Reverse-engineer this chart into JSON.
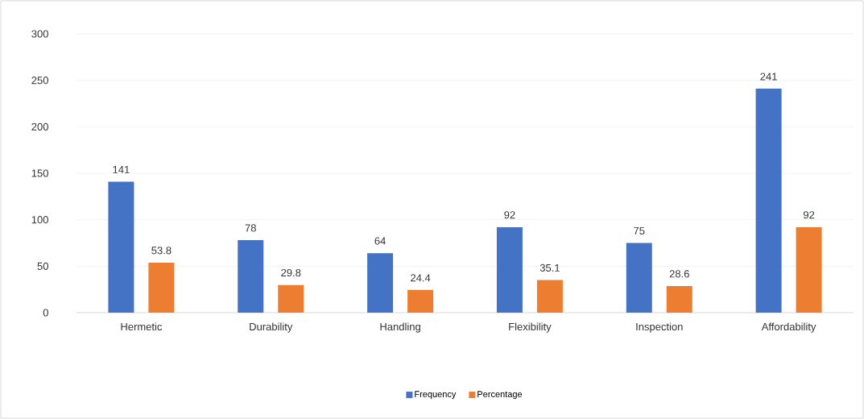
{
  "chart_data": {
    "type": "bar",
    "categories": [
      "Hermetic",
      "Durability",
      "Handling",
      "Flexibility",
      "Inspection",
      "Affordability"
    ],
    "series": [
      {
        "name": "Frequency",
        "color": "#4472c4",
        "values": [
          141,
          78,
          64,
          92,
          75,
          241
        ]
      },
      {
        "name": "Percentage",
        "color": "#ed7d31",
        "values": [
          53.8,
          29.8,
          24.4,
          35.1,
          28.6,
          92
        ]
      }
    ],
    "ylim": [
      0,
      300
    ],
    "yticks": [
      0,
      50,
      100,
      150,
      200,
      250,
      300
    ],
    "grid": "y",
    "legend": "bottom",
    "data_labels": true
  }
}
